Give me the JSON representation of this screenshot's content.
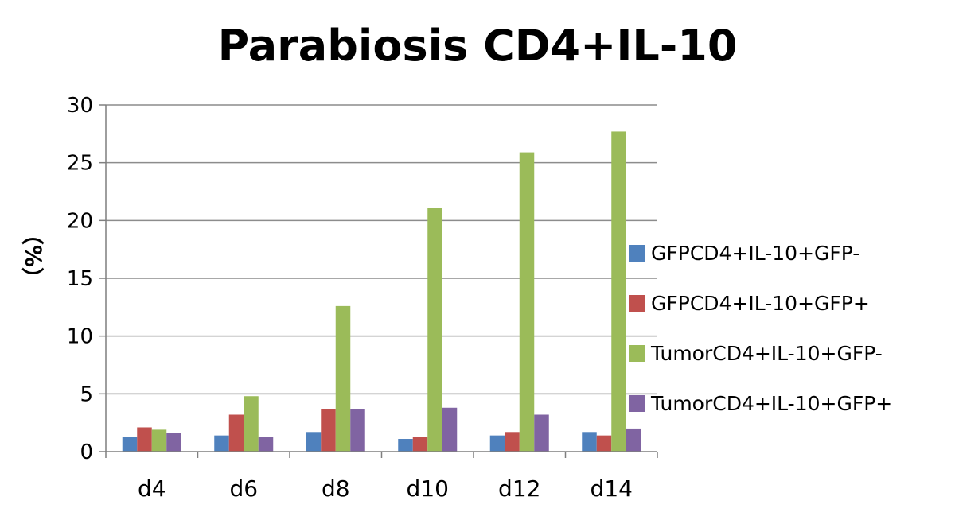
{
  "chart_data": {
    "type": "bar",
    "title": "Parabiosis CD4+IL-10",
    "xlabel": "",
    "ylabel": "（%）",
    "ylim": [
      0,
      30
    ],
    "yticks": [
      0,
      5,
      10,
      15,
      20,
      25,
      30
    ],
    "grid": true,
    "legend_position": "right",
    "categories": [
      "d4",
      "d6",
      "d8",
      "d10",
      "d12",
      "d14"
    ],
    "series": [
      {
        "name": "GFPCD4+IL-10+GFP-",
        "color": "#4f81bd",
        "values": [
          1.3,
          1.4,
          1.7,
          1.1,
          1.4,
          1.7
        ]
      },
      {
        "name": "GFPCD4+IL-10+GFP+",
        "color": "#c0504d",
        "values": [
          2.1,
          3.2,
          3.7,
          1.3,
          1.7,
          1.4
        ]
      },
      {
        "name": "TumorCD4+IL-10+GFP-",
        "color": "#9bbb59",
        "values": [
          1.9,
          4.8,
          12.6,
          21.1,
          25.9,
          27.7
        ]
      },
      {
        "name": "TumorCD4+IL-10+GFP+",
        "color": "#8064a2",
        "values": [
          1.6,
          1.3,
          3.7,
          3.8,
          3.2,
          2.0
        ]
      }
    ]
  }
}
